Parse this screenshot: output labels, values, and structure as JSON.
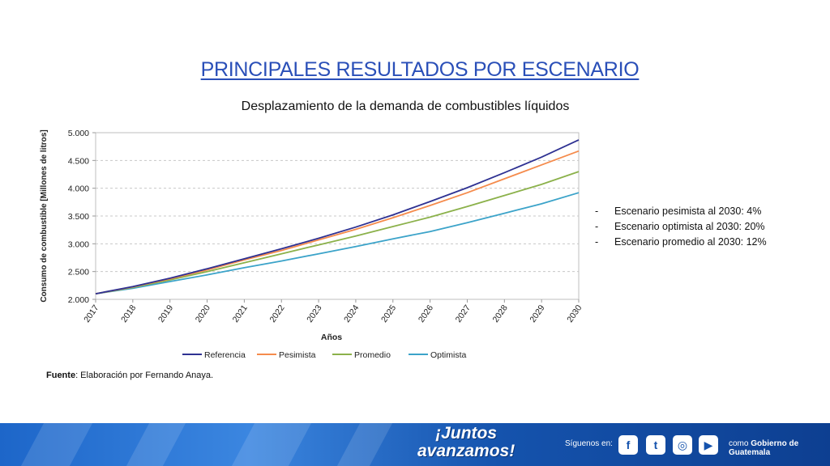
{
  "title": "PRINCIPALES RESULTADOS POR ESCENARIO",
  "subtitle": "Desplazamiento de la demanda de combustibles líquidos",
  "notes": [
    "Escenario pesimista al 2030: 4%",
    "Escenario optimista al 2030: 20%",
    "Escenario promedio al 2030: 12%"
  ],
  "source": {
    "label": "Fuente",
    "text": ": Elaboración por Fernando Anaya."
  },
  "footer": {
    "slogan_line1": "¡Juntos",
    "slogan_line2": "avanzamos!",
    "follow": "Síguenos en:",
    "social": [
      {
        "icon": "facebook-icon",
        "glyph": "f"
      },
      {
        "icon": "twitter-icon",
        "glyph": "t"
      },
      {
        "icon": "instagram-icon",
        "glyph": "◎"
      },
      {
        "icon": "youtube-icon",
        "glyph": "▶"
      }
    ],
    "gov_prefix": "como ",
    "gov_name": "Gobierno de Guatemala"
  },
  "chart_data": {
    "type": "line",
    "xlabel": "Años",
    "ylabel": "Consumo de combustible [Millones de litros]",
    "ylim": [
      2000,
      5000
    ],
    "yticks": [
      2000,
      2500,
      3000,
      3500,
      4000,
      4500,
      5000
    ],
    "ytick_labels": [
      "2.000",
      "2.500",
      "3.000",
      "3.500",
      "4.000",
      "4.500",
      "5.000"
    ],
    "x": [
      "2017",
      "2018",
      "2019",
      "2020",
      "2021",
      "2022",
      "2023",
      "2024",
      "2025",
      "2026",
      "2027",
      "2028",
      "2029",
      "2030"
    ],
    "grid": "horizontal dashed",
    "legend_position": "bottom",
    "series": [
      {
        "name": "Referencia",
        "color": "#2e3192",
        "values": [
          2100,
          2230,
          2380,
          2550,
          2730,
          2910,
          3100,
          3300,
          3520,
          3760,
          4010,
          4280,
          4560,
          4870
        ]
      },
      {
        "name": "Pesimista",
        "color": "#f58b4c",
        "values": [
          2100,
          2225,
          2370,
          2530,
          2710,
          2880,
          3070,
          3260,
          3470,
          3690,
          3920,
          4170,
          4420,
          4670
        ]
      },
      {
        "name": "Promedio",
        "color": "#8bb14a",
        "values": [
          2100,
          2215,
          2350,
          2500,
          2660,
          2820,
          2980,
          3140,
          3310,
          3480,
          3670,
          3870,
          4070,
          4300
        ]
      },
      {
        "name": "Optimista",
        "color": "#3ba3c9",
        "values": [
          2100,
          2200,
          2320,
          2440,
          2570,
          2690,
          2820,
          2950,
          3090,
          3220,
          3380,
          3550,
          3720,
          3920
        ]
      }
    ]
  }
}
